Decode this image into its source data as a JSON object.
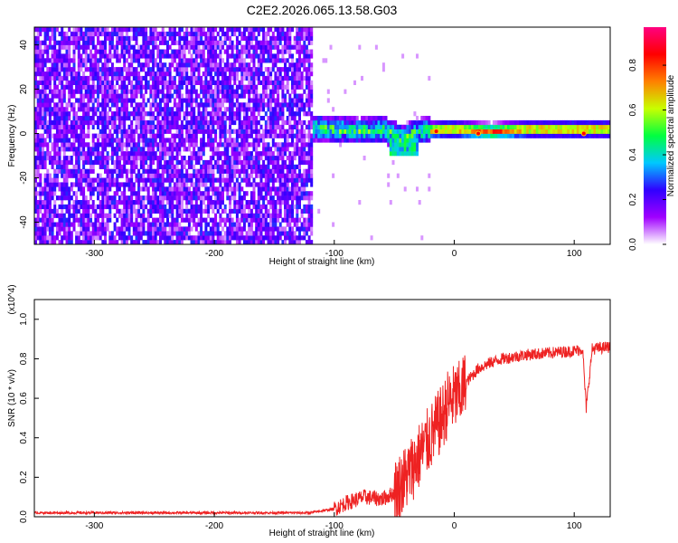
{
  "figure_title": "C2E2.2026.065.13.58.G03",
  "chart_data": [
    {
      "type": "heatmap",
      "xlabel": "Height of straight line (km)",
      "ylabel": "Frequency (Hz)",
      "xlim": [
        -350,
        130
      ],
      "ylim": [
        -50,
        48
      ],
      "x_ticks": [
        -300,
        -200,
        -100,
        0,
        100
      ],
      "x_tick_labels": [
        "-300",
        "-200",
        "-100",
        "0",
        "100"
      ],
      "y_ticks": [
        -40,
        -20,
        0,
        20,
        40
      ],
      "y_tick_labels": [
        "-40",
        "-20",
        "0",
        "20",
        "40"
      ],
      "colorbar": {
        "label": "Normalized spectral amplitude",
        "range": [
          0,
          0.97
        ],
        "ticks": [
          0.0,
          0.2,
          0.4,
          0.6,
          0.8
        ],
        "tick_labels": [
          "0.0",
          "0.2",
          "0.4",
          "0.6",
          "0.8"
        ],
        "colormap": [
          "#ffffff",
          "#a000ff",
          "#3000ff",
          "#00c8ff",
          "#00ff40",
          "#c8ff00",
          "#ff8000",
          "#ff0000",
          "#ff0080"
        ]
      },
      "regions": [
        {
          "x_range": [
            -350,
            -118
          ],
          "freq_range": [
            -50,
            48
          ],
          "amplitude": "0.0-0.25",
          "pattern": "broadband noise"
        },
        {
          "x_range": [
            -135,
            -20
          ],
          "freq_range": [
            -12,
            8
          ],
          "amplitude": "0.2-0.6",
          "pattern": "scattered signal, drifting to -10 Hz near -40 km"
        },
        {
          "x_range": [
            -20,
            130
          ],
          "freq_range": [
            -3,
            4
          ],
          "amplitude": "0.5-0.97",
          "pattern": "narrow carrier at ~1 Hz"
        }
      ],
      "carrier_track": [
        {
          "x": -130,
          "y": 2
        },
        {
          "x": -100,
          "y": 1
        },
        {
          "x": -80,
          "y": 0
        },
        {
          "x": -60,
          "y": 1
        },
        {
          "x": -45,
          "y": -3
        },
        {
          "x": -30,
          "y": 0
        },
        {
          "x": -10,
          "y": 1
        },
        {
          "x": 0,
          "y": 1
        },
        {
          "x": 30,
          "y": 0
        },
        {
          "x": 60,
          "y": 1
        },
        {
          "x": 90,
          "y": 1
        },
        {
          "x": 130,
          "y": 1
        }
      ],
      "peak_markers": [
        {
          "x": -15,
          "y": 1
        },
        {
          "x": 20,
          "y": 0
        },
        {
          "x": 108,
          "y": 0
        }
      ]
    },
    {
      "type": "line",
      "xlabel": "Height of straight line (km)",
      "ylabel": "SNR (10 * v/v)",
      "y_multiplier": "(x10^4)",
      "xlim": [
        -350,
        130
      ],
      "ylim": [
        0,
        1.1
      ],
      "x_ticks": [
        -300,
        -200,
        -100,
        0,
        100
      ],
      "x_tick_labels": [
        "-300",
        "-200",
        "-100",
        "0",
        "100"
      ],
      "y_ticks": [
        0.0,
        0.2,
        0.4,
        0.6,
        0.8,
        1.0
      ],
      "y_tick_labels": [
        "0.0",
        "0.2",
        "0.4",
        "0.6",
        "0.8",
        "1.0"
      ],
      "series": [
        {
          "color": "#ee2222",
          "x": [
            -350,
            -300,
            -250,
            -200,
            -150,
            -120,
            -100,
            -90,
            -75,
            -60,
            -50,
            -40,
            -30,
            -20,
            -15,
            -10,
            -5,
            0,
            5,
            10,
            20,
            30,
            40,
            60,
            80,
            100,
            107,
            110,
            115,
            130
          ],
          "y": [
            0.02,
            0.02,
            0.02,
            0.02,
            0.02,
            0.02,
            0.04,
            0.07,
            0.1,
            0.09,
            0.12,
            0.2,
            0.3,
            0.4,
            0.45,
            0.5,
            0.58,
            0.6,
            0.62,
            0.68,
            0.75,
            0.78,
            0.8,
            0.82,
            0.83,
            0.84,
            0.85,
            0.55,
            0.85,
            0.86
          ]
        }
      ]
    }
  ]
}
